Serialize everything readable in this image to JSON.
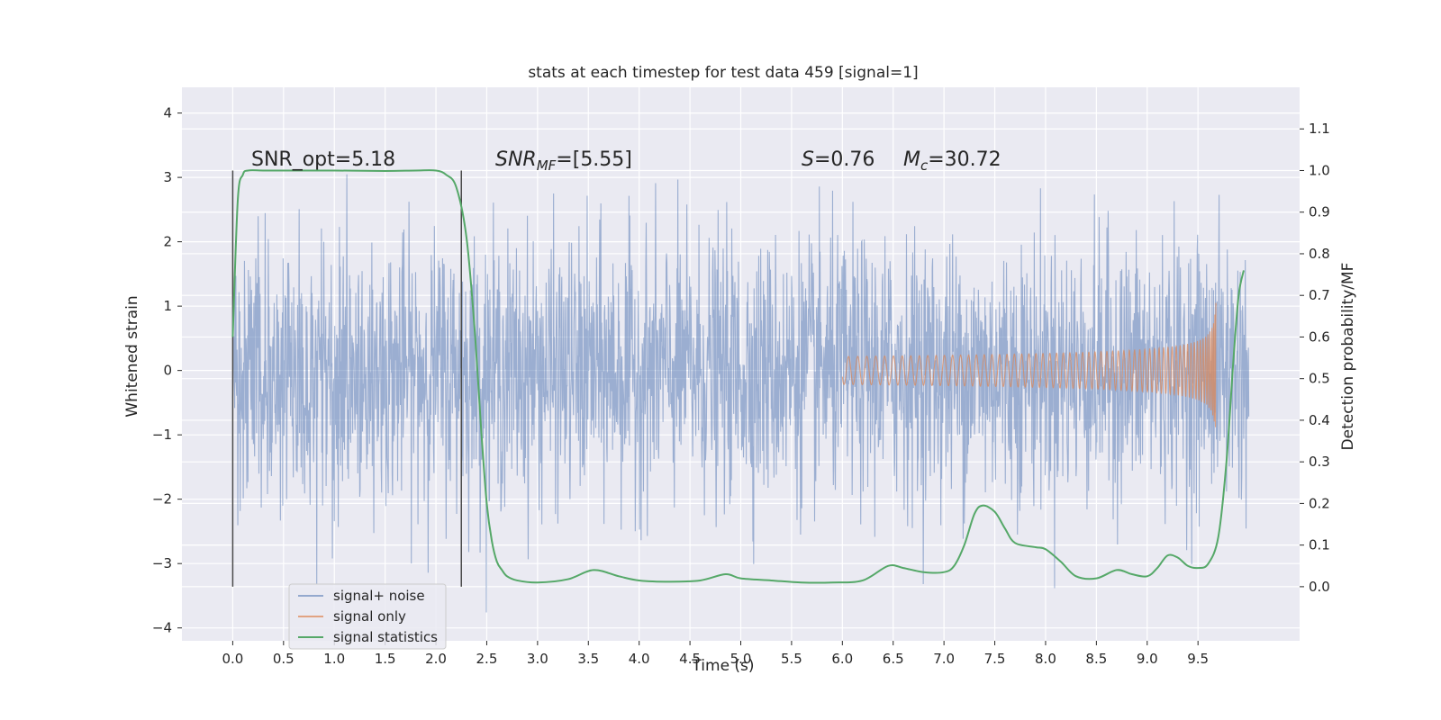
{
  "chart_data": {
    "type": "line",
    "title": "stats at each timestep for test data 459 [signal=1]",
    "xlabel": "Time (s)",
    "ylabel": "Whitened strain",
    "y2label": "Detection probability/MF",
    "xlim": [
      -0.5,
      10.5
    ],
    "ylim": [
      -4.2,
      4.4
    ],
    "y2lim": [
      -0.13,
      1.2
    ],
    "xticks": [
      "0.0",
      "0.5",
      "1.0",
      "1.5",
      "2.0",
      "2.5",
      "3.0",
      "3.5",
      "4.0",
      "4.5",
      "5.0",
      "5.5",
      "6.0",
      "6.5",
      "7.0",
      "7.5",
      "8.0",
      "8.5",
      "9.0",
      "9.5"
    ],
    "yticks": [
      "4",
      "3",
      "2",
      "1",
      "0",
      "−1",
      "−2",
      "−3",
      "−4"
    ],
    "y2ticks": [
      "1.1",
      "1.0",
      "0.9",
      "0.8",
      "0.7",
      "0.6",
      "0.5",
      "0.4",
      "0.3",
      "0.2",
      "0.1",
      "0.0"
    ],
    "grid": true,
    "colors": {
      "background": "#eaeaf2",
      "noise": "#4c72b0",
      "signal": "#dd8452",
      "stat": "#55a868",
      "marker": "#4a4a4a"
    },
    "annotations": {
      "snr_opt": "SNR_opt=5.18",
      "snr_mf_prefix": "SNR",
      "snr_mf_sub": "MF",
      "snr_mf_value": "=[5.55]",
      "s_symbol": "S",
      "s_value": "=0.76",
      "mc_symbol": "M",
      "mc_sub": "c",
      "mc_value": "=30.72"
    },
    "markers_x": [
      0.0,
      2.25
    ],
    "series": [
      {
        "name": "signal+ noise",
        "kind": "noise",
        "x_range": [
          0.0,
          10.0
        ],
        "std": 1.0
      },
      {
        "name": "signal only",
        "kind": "chirp",
        "merger_time": 9.68,
        "peak_amplitude": 1.2
      },
      {
        "name": "signal statistics",
        "axis": "right",
        "x": [
          0.0,
          0.05,
          0.1,
          0.15,
          0.3,
          0.5,
          1.0,
          1.5,
          1.8,
          2.0,
          2.1,
          2.2,
          2.3,
          2.38,
          2.45,
          2.5,
          2.55,
          2.6,
          2.65,
          2.7,
          2.8,
          3.0,
          3.3,
          3.55,
          3.8,
          4.0,
          4.3,
          4.6,
          4.85,
          5.0,
          5.3,
          5.6,
          5.9,
          6.2,
          6.45,
          6.6,
          6.8,
          7.0,
          7.1,
          7.2,
          7.3,
          7.38,
          7.5,
          7.6,
          7.7,
          7.9,
          8.0,
          8.15,
          8.3,
          8.5,
          8.7,
          8.85,
          9.0,
          9.1,
          9.2,
          9.3,
          9.4,
          9.5,
          9.6,
          9.7,
          9.78,
          9.85,
          9.9,
          9.95
        ],
        "y": [
          0.6,
          0.93,
          0.99,
          1.0,
          1.0,
          1.0,
          1.0,
          0.999,
          1.0,
          1.0,
          0.99,
          0.96,
          0.84,
          0.62,
          0.36,
          0.2,
          0.11,
          0.06,
          0.04,
          0.025,
          0.015,
          0.01,
          0.018,
          0.04,
          0.025,
          0.015,
          0.012,
          0.015,
          0.03,
          0.02,
          0.015,
          0.01,
          0.01,
          0.015,
          0.05,
          0.045,
          0.035,
          0.035,
          0.05,
          0.1,
          0.175,
          0.195,
          0.18,
          0.14,
          0.105,
          0.095,
          0.09,
          0.06,
          0.025,
          0.02,
          0.04,
          0.03,
          0.025,
          0.045,
          0.075,
          0.07,
          0.05,
          0.045,
          0.055,
          0.12,
          0.3,
          0.55,
          0.7,
          0.76
        ]
      }
    ]
  }
}
